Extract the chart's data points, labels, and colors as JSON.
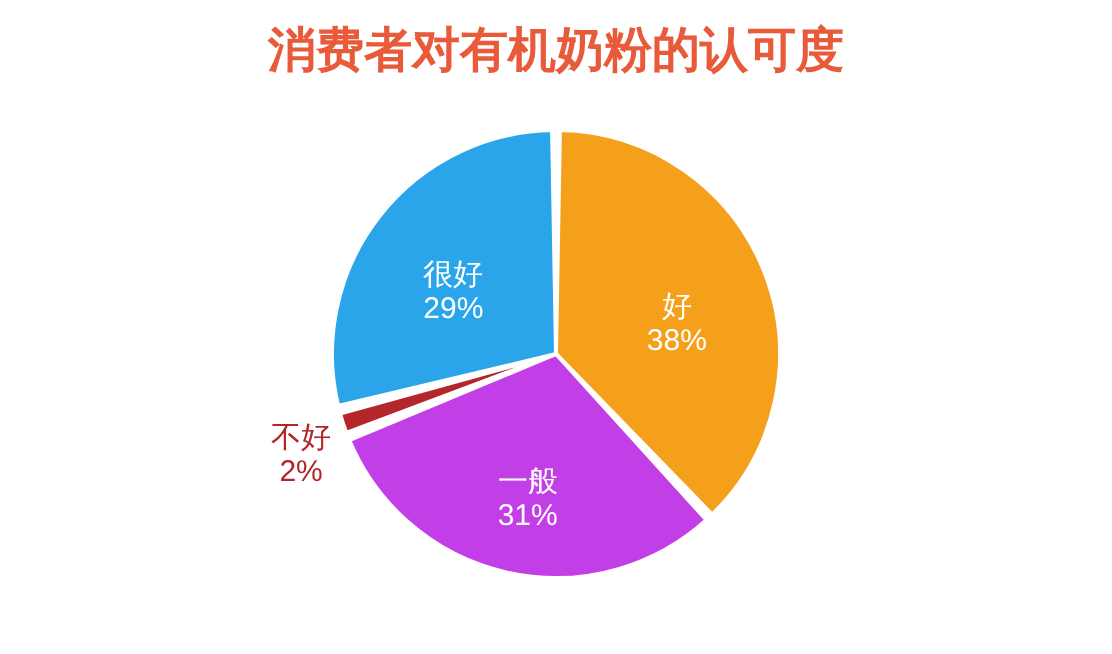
{
  "chart_data": {
    "type": "pie",
    "title": "消费者对有机奶粉的认可度",
    "categories": [
      "好",
      "一般",
      "不好",
      "很好"
    ],
    "values": [
      38,
      31,
      2,
      29
    ],
    "value_labels": [
      "38%",
      "31%",
      "2%",
      "29%"
    ],
    "colors": [
      "#f5a01a",
      "#c23ee6",
      "#b3262a",
      "#2aa5ea"
    ]
  }
}
